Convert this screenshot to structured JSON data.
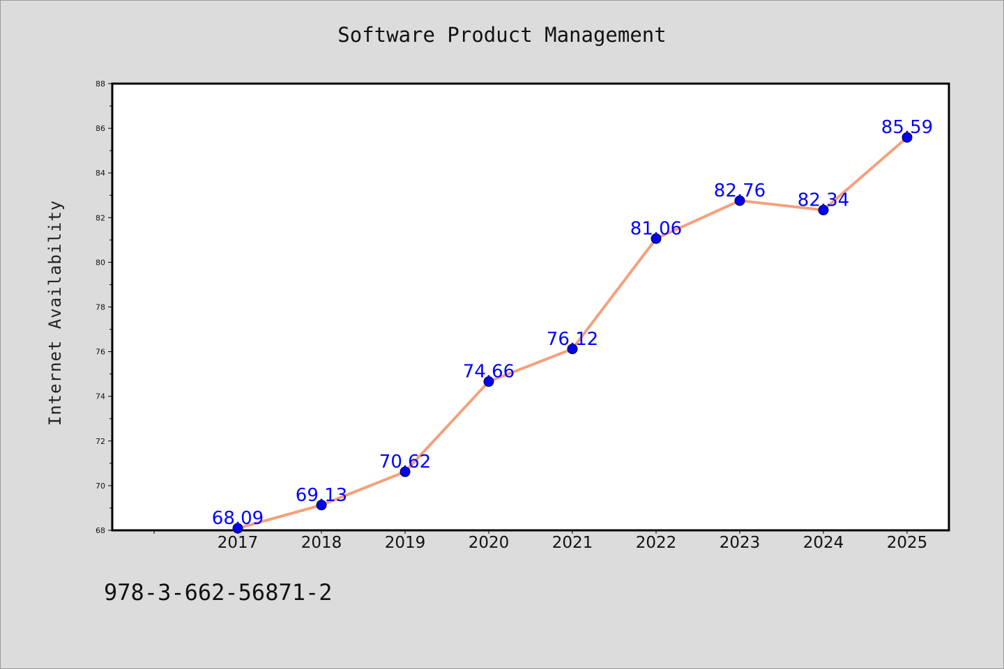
{
  "title": "Software Product Management",
  "footnote": "978-3-662-56871-2",
  "colors": {
    "background": "#dcdcdc",
    "plot_background": "#ffffff",
    "line": "#f4a07c",
    "marker": "#0000ee",
    "data_label": "#0000ff"
  },
  "chart_data": {
    "type": "line",
    "title": "Software Product Management",
    "xlabel": "",
    "ylabel": "Internet Availability",
    "x": [
      "2017",
      "2018",
      "2019",
      "2020",
      "2021",
      "2022",
      "2023",
      "2024",
      "2025"
    ],
    "series": [
      {
        "values": [
          68.09,
          69.13,
          70.62,
          74.66,
          76.12,
          81.06,
          82.76,
          82.34,
          85.59
        ]
      }
    ],
    "data_labels": [
      "68.09",
      "69.13",
      "70.62",
      "74.66",
      "76.12",
      "81.06",
      "82.76",
      "82.34",
      "85.59"
    ],
    "ylim": [
      68,
      88
    ],
    "yticks": [
      "68",
      "70",
      "72",
      "74",
      "76",
      "78",
      "80",
      "82",
      "84",
      "86",
      "88"
    ],
    "grid": false,
    "legend": "none"
  }
}
